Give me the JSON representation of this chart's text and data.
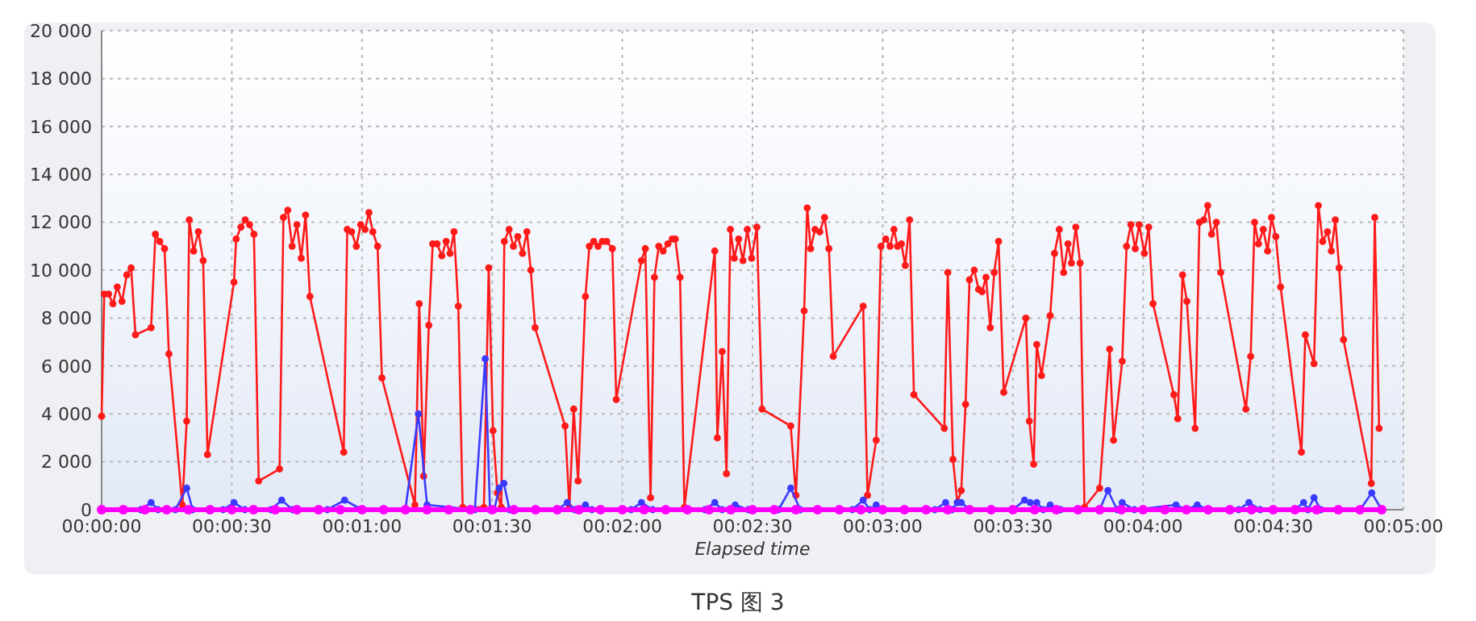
{
  "chart_data": {
    "type": "line",
    "xlabel": "Elapsed time",
    "annotations": [
      "TPS 图 3"
    ],
    "xlim": [
      0,
      300
    ],
    "xticks": [
      {
        "value": 0,
        "label": "00:00:00"
      },
      {
        "value": 30,
        "label": "00:00:30"
      },
      {
        "value": 60,
        "label": "00:01:00"
      },
      {
        "value": 90,
        "label": "00:01:30"
      },
      {
        "value": 120,
        "label": "00:02:00"
      },
      {
        "value": 150,
        "label": "00:02:30"
      },
      {
        "value": 180,
        "label": "00:03:00"
      },
      {
        "value": 210,
        "label": "00:03:30"
      },
      {
        "value": 240,
        "label": "00:04:00"
      },
      {
        "value": 270,
        "label": "00:04:30"
      },
      {
        "value": 300,
        "label": "00:05:00"
      }
    ],
    "ylim": [
      0,
      20000
    ],
    "yticks": [
      0,
      {
        "value": 2000,
        "label": "2 000"
      },
      {
        "value": 4000,
        "label": "4 000"
      },
      {
        "value": 6000,
        "label": "6 000"
      },
      {
        "value": 8000,
        "label": "8 000"
      },
      {
        "value": 10000,
        "label": "10 000"
      },
      {
        "value": 12000,
        "label": "12 000"
      },
      {
        "value": 14000,
        "label": "14 000"
      },
      {
        "value": 16000,
        "label": "16 000"
      },
      {
        "value": 18000,
        "label": "18 000"
      },
      {
        "value": 20000,
        "label": "20 000"
      }
    ],
    "grid": true,
    "marker": "circle",
    "line_style": "solid",
    "series": [
      {
        "color": "#ff1a1a",
        "x": [
          0,
          0.6,
          1.6,
          2.6,
          3.6,
          4.7,
          5.8,
          6.8,
          7.8,
          11.4,
          12.4,
          13.4,
          14.5,
          15.5,
          18.6,
          19.6,
          20.2,
          21.2,
          22.3,
          23.4,
          24.4,
          30.5,
          31,
          32.1,
          33.1,
          34.1,
          35.1,
          36.2,
          41,
          41.9,
          42.9,
          43.9,
          45,
          46,
          47,
          48,
          55.8,
          56.6,
          57.6,
          58.7,
          59.7,
          60.7,
          61.6,
          62.5,
          63.6,
          64.6,
          72.2,
          73.2,
          74.2,
          75.4,
          76.3,
          77.3,
          78.4,
          79.4,
          80.3,
          81.2,
          82.2,
          83.2,
          88.1,
          89.2,
          90.2,
          91.2,
          92.1,
          92.8,
          93.9,
          94.9,
          95.9,
          97,
          98,
          98.9,
          99.9,
          106.8,
          107.8,
          108.8,
          109.8,
          111.5,
          112.4,
          113.4,
          114.4,
          115.4,
          116.4,
          117.7,
          118.6,
          124.4,
          125.3,
          126.5,
          127.4,
          128.4,
          129.4,
          130.5,
          131.5,
          132.2,
          133.3,
          134.3,
          141.3,
          141.9,
          143,
          144,
          144.9,
          145.8,
          146.8,
          147.8,
          148.8,
          149.8,
          151,
          152.2,
          158.8,
          160,
          161.9,
          162.6,
          163.4,
          164.4,
          165.5,
          166.6,
          167.6,
          168.6,
          175.5,
          176.5,
          178.5,
          179.6,
          180.7,
          181.7,
          182.6,
          183.4,
          184.3,
          185.2,
          186.2,
          187.2,
          194.2,
          195,
          196.2,
          197.2,
          198.1,
          199.1,
          200,
          201.1,
          202.1,
          202.9,
          203.8,
          204.8,
          205.7,
          206.7,
          207.9,
          213,
          213.8,
          214.8,
          215.5,
          216.6,
          218.6,
          219.6,
          220.7,
          221.7,
          222.7,
          223.5,
          224.5,
          225.5,
          226.5,
          230,
          232.3,
          233.2,
          235.2,
          236.2,
          237.2,
          238.2,
          239.1,
          240.3,
          241.3,
          242.3,
          247.1,
          248,
          249.1,
          250.1,
          252,
          253,
          254,
          254.9,
          255.8,
          256.9,
          257.9,
          263.7,
          264.8,
          265.7,
          266.6,
          267.7,
          268.7,
          269.6,
          270.6,
          271.7,
          276.5,
          277.4,
          279.4,
          280.4,
          281.4,
          282.5,
          283.4,
          284.3,
          285.2,
          286.2,
          292.6,
          293.4,
          294.4
        ],
        "values": [
          3900,
          9000,
          9000,
          8600,
          9300,
          8700,
          9800,
          10100,
          7300,
          7600,
          11500,
          11200,
          10900,
          6500,
          200,
          3700,
          12100,
          10800,
          11600,
          10400,
          2300,
          9500,
          11300,
          11800,
          12100,
          11900,
          11500,
          1200,
          1700,
          12200,
          12500,
          11000,
          11900,
          10500,
          12300,
          8900,
          2400,
          11700,
          11600,
          11000,
          11900,
          11700,
          12400,
          11600,
          11000,
          5500,
          200,
          8600,
          1400,
          7700,
          11100,
          11100,
          10600,
          11200,
          10700,
          11600,
          8500,
          100,
          100,
          10100,
          3300,
          700,
          100,
          11200,
          11700,
          11000,
          11400,
          10700,
          11600,
          10000,
          7600,
          3500,
          100,
          4200,
          1200,
          8900,
          11000,
          11200,
          11000,
          11200,
          11200,
          10900,
          4600,
          10400,
          10900,
          500,
          9700,
          11000,
          10800,
          11100,
          11300,
          11300,
          9700,
          100,
          10800,
          3000,
          6600,
          1500,
          11700,
          10500,
          11300,
          10400,
          11700,
          10500,
          11800,
          4200,
          3500,
          600,
          8300,
          12600,
          10900,
          11700,
          11600,
          12200,
          10900,
          6400,
          8500,
          600,
          2900,
          11000,
          11300,
          11000,
          11700,
          11000,
          11100,
          10200,
          12100,
          4800,
          3400,
          9900,
          2100,
          300,
          800,
          4400,
          9600,
          10000,
          9200,
          9100,
          9700,
          7600,
          9900,
          11200,
          4900,
          8000,
          3700,
          1900,
          6900,
          5600,
          8100,
          10700,
          11700,
          9900,
          11100,
          10300,
          11800,
          10300,
          100,
          900,
          6700,
          2900,
          6200,
          11000,
          11900,
          10900,
          11900,
          10700,
          11800,
          8600,
          4800,
          3800,
          9800,
          8700,
          3400,
          12000,
          12100,
          12700,
          11500,
          12000,
          9900,
          4200,
          6400,
          12000,
          11100,
          11700,
          10800,
          12200,
          11400,
          9300,
          2400,
          7300,
          6100,
          12700,
          11200,
          11600,
          10800,
          12100,
          10100,
          7100,
          1100,
          12200,
          3400
        ]
      },
      {
        "color": "#3a3aff",
        "x": [
          0,
          9,
          11.4,
          13,
          17,
          19.6,
          21,
          28,
          30.5,
          33,
          39,
          41.5,
          44,
          52,
          56,
          60,
          70,
          73,
          75,
          86,
          88.4,
          89.5,
          90.5,
          91.6,
          92.7,
          94,
          105,
          107.3,
          109,
          111.5,
          113,
          122,
          124.4,
          127,
          139,
          141.3,
          143,
          146,
          149,
          156,
          158.8,
          161,
          173,
          175.5,
          177,
          178.5,
          180,
          192,
          194.5,
          196,
          197.2,
          198.1,
          200,
          210,
          212.7,
          214,
          215.5,
          217,
          218.6,
          221,
          230,
          231.9,
          234,
          235.2,
          238,
          247.6,
          250,
          252.5,
          255,
          262,
          264.4,
          267,
          275,
          277,
          278,
          279.4,
          281,
          290,
          292.7,
          295
        ],
        "values": [
          0,
          0,
          300,
          0,
          0,
          900,
          0,
          0,
          300,
          0,
          0,
          400,
          0,
          0,
          400,
          0,
          0,
          4000,
          200,
          0,
          6300,
          0,
          0,
          900,
          1100,
          0,
          0,
          300,
          0,
          200,
          0,
          0,
          300,
          0,
          0,
          300,
          0,
          200,
          0,
          0,
          900,
          0,
          0,
          400,
          0,
          200,
          0,
          0,
          300,
          0,
          300,
          300,
          0,
          0,
          400,
          300,
          300,
          0,
          200,
          0,
          0,
          800,
          0,
          300,
          0,
          200,
          0,
          200,
          0,
          0,
          300,
          0,
          0,
          300,
          0,
          500,
          0,
          0,
          700,
          0
        ]
      },
      {
        "color": "#ff00ff",
        "x": [
          0,
          5,
          10,
          15,
          20,
          25,
          30,
          35,
          40,
          45,
          50,
          55,
          60,
          65,
          70,
          75,
          80,
          85,
          90,
          95,
          100,
          105,
          110,
          115,
          120,
          125,
          130,
          135,
          140,
          145,
          150,
          155,
          160,
          165,
          170,
          175,
          180,
          185,
          190,
          195,
          200,
          205,
          210,
          215,
          220,
          225,
          230,
          235,
          240,
          245,
          250,
          255,
          260,
          265,
          270,
          275,
          280,
          285,
          290,
          295
        ],
        "values": [
          0,
          0,
          0,
          0,
          0,
          0,
          0,
          0,
          0,
          0,
          0,
          0,
          0,
          0,
          0,
          0,
          0,
          0,
          0,
          0,
          0,
          0,
          0,
          0,
          0,
          0,
          0,
          0,
          0,
          0,
          0,
          0,
          0,
          0,
          0,
          0,
          0,
          0,
          0,
          0,
          0,
          0,
          0,
          0,
          0,
          0,
          0,
          0,
          0,
          0,
          0,
          0,
          0,
          0,
          0,
          0,
          0,
          0,
          0,
          0
        ]
      }
    ]
  }
}
